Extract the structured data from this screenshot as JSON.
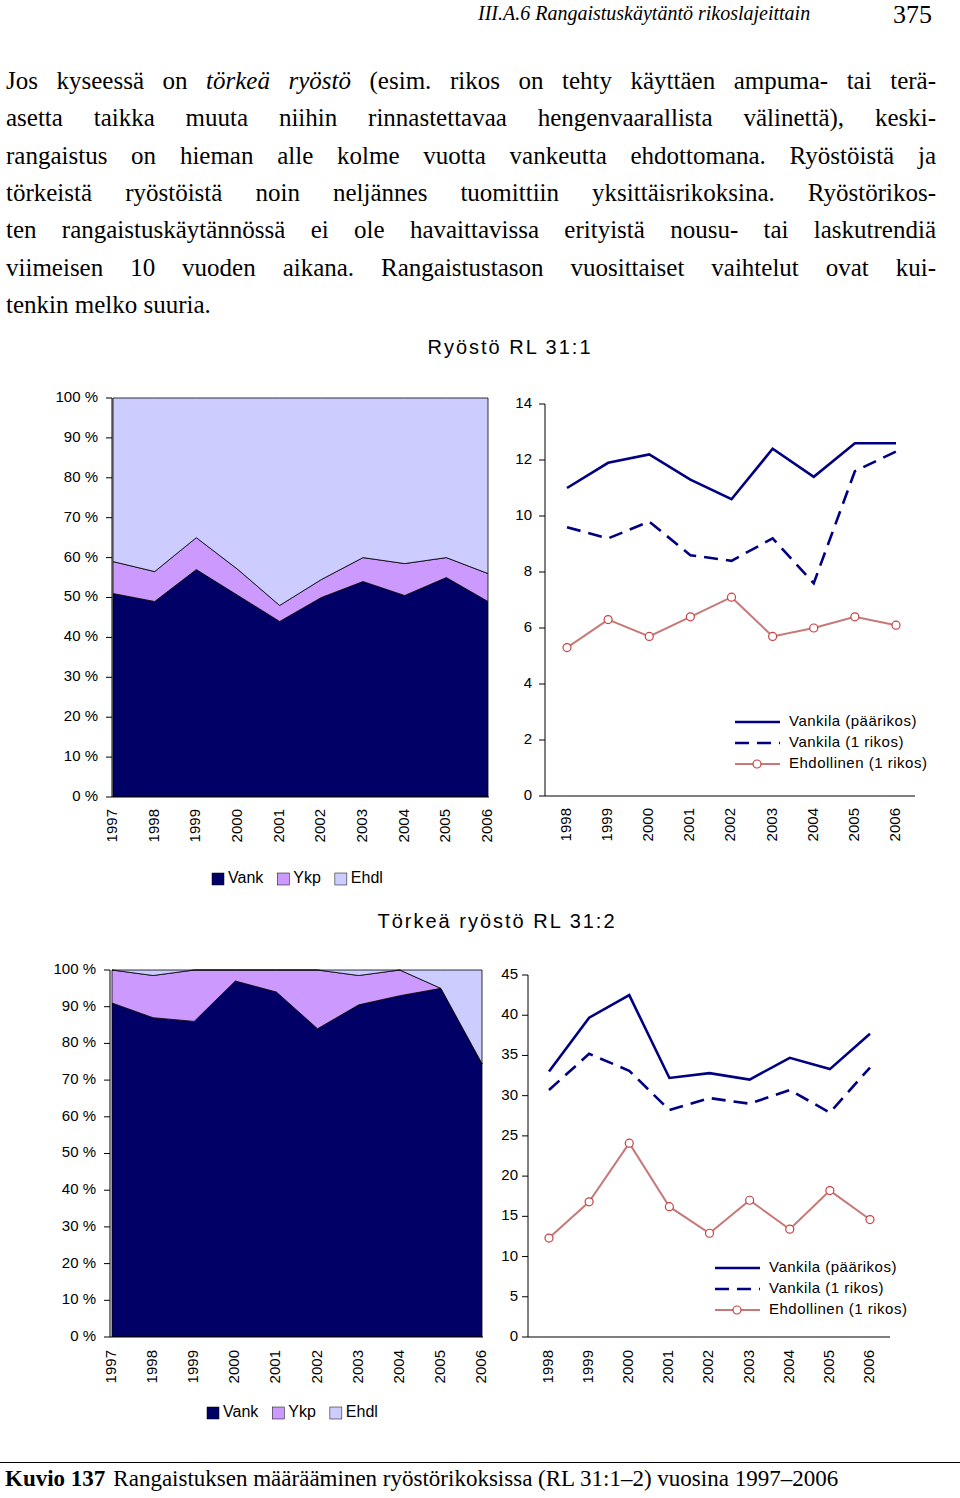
{
  "header": {
    "section": "III.A.6 Rangaistuskäytäntö rikoslajeittain",
    "page": "375"
  },
  "paragraph": [
    {
      "segments": [
        {
          "text": "Jos kyseessä on "
        },
        {
          "text": "törkeä ryöstö",
          "style": "italic"
        },
        {
          "text": " (esim. rikos on tehty käyttäen ampuma- tai terä-"
        }
      ]
    },
    {
      "segments": [
        {
          "text": "asetta taikka muuta niihin rinnastettavaa hengenvaarallista välinettä), keski-"
        }
      ]
    },
    {
      "segments": [
        {
          "text": "rangaistus on hieman alle kolme vuotta vankeutta ehdottomana. Ryöstöistä ja"
        }
      ]
    },
    {
      "segments": [
        {
          "text": "törkeistä ryöstöistä noin neljännes tuomittiin yksittäisrikoksina. Ryöstörikos-"
        }
      ]
    },
    {
      "segments": [
        {
          "text": "ten rangaistuskäytännössä ei ole havaittavissa erityistä nousu- tai laskutrendiä"
        }
      ]
    },
    {
      "segments": [
        {
          "text": "viimeisen 10 vuoden aikana. Rangaistustason vuosittaiset vaihtelut ovat kui-"
        }
      ]
    },
    {
      "segments": [
        {
          "text": "tenkin melko suuria."
        }
      ]
    }
  ],
  "chart_data": [
    {
      "type": "area",
      "stacked": true,
      "title": "Ryöstö RL 31:1",
      "categories": [
        "1997",
        "1998",
        "1999",
        "2000",
        "2001",
        "2002",
        "2003",
        "2004",
        "2005",
        "2006"
      ],
      "series": [
        {
          "name": "Vank",
          "color": "#000066",
          "values": [
            51,
            49,
            57,
            50.5,
            44,
            50,
            54,
            50.5,
            55,
            49
          ]
        },
        {
          "name": "Ykp",
          "color": "#cc99ff",
          "values": [
            8,
            7.5,
            8,
            6.5,
            4,
            4.5,
            6,
            8,
            5,
            7
          ]
        },
        {
          "name": "Ehdl",
          "color": "#ccccff",
          "values": [
            41,
            43.5,
            35,
            43,
            52,
            45.5,
            40,
            41.5,
            40,
            44
          ]
        }
      ],
      "ylim": [
        0,
        100
      ],
      "yticks": [
        {
          "value": 0,
          "label": "0 %"
        },
        {
          "value": 10,
          "label": "10 %"
        },
        {
          "value": 20,
          "label": "20 %"
        },
        {
          "value": 30,
          "label": "30 %"
        },
        {
          "value": 40,
          "label": "40 %"
        },
        {
          "value": 50,
          "label": "50 %"
        },
        {
          "value": 60,
          "label": "60 %"
        },
        {
          "value": 70,
          "label": "70 %"
        },
        {
          "value": 80,
          "label": "80 %"
        },
        {
          "value": 90,
          "label": "90 %"
        },
        {
          "value": 100,
          "label": "100 %"
        }
      ],
      "legend": "bottom",
      "grid": false
    },
    {
      "type": "line",
      "categories": [
        "1998",
        "1999",
        "2000",
        "2001",
        "2002",
        "2003",
        "2004",
        "2005",
        "2006"
      ],
      "series": [
        {
          "name": "Vankila (päärikos)",
          "color": "#000080",
          "line_style": "solid",
          "values": [
            11.0,
            11.9,
            12.2,
            11.3,
            10.6,
            12.4,
            11.4,
            12.6,
            12.6
          ]
        },
        {
          "name": "Vankila (1 rikos)",
          "color": "#000080",
          "line_style": "dashed",
          "values": [
            9.6,
            9.2,
            9.8,
            8.6,
            8.4,
            9.2,
            7.6,
            11.6,
            12.3
          ]
        },
        {
          "name": "Ehdollinen (1 rikos)",
          "color": "#c87878",
          "line_style": "solid",
          "marker": "circle",
          "values": [
            5.3,
            6.3,
            5.7,
            6.4,
            7.1,
            5.7,
            6.0,
            6.4,
            6.1
          ]
        }
      ],
      "ylim": [
        0,
        14
      ],
      "yticks": [
        0,
        2,
        4,
        6,
        8,
        10,
        12,
        14
      ],
      "legend": "lower right",
      "grid": false
    },
    {
      "type": "area",
      "stacked": true,
      "title": "Törkeä ryöstö RL 31:2",
      "categories": [
        "1997",
        "1998",
        "1999",
        "2000",
        "2001",
        "2002",
        "2003",
        "2004",
        "2005",
        "2006"
      ],
      "series": [
        {
          "name": "Vank",
          "color": "#000066",
          "values": [
            91,
            87,
            86,
            97,
            94,
            84,
            90.5,
            93,
            95,
            74.5
          ]
        },
        {
          "name": "Ykp",
          "color": "#cc99ff",
          "values": [
            9,
            11.5,
            14,
            3,
            6,
            16,
            8,
            7,
            0,
            0
          ]
        },
        {
          "name": "Ehdl",
          "color": "#ccccff",
          "values": [
            0,
            1.5,
            0,
            0,
            0,
            0,
            1.5,
            0,
            5,
            25.5
          ]
        }
      ],
      "ylim": [
        0,
        100
      ],
      "yticks": [
        {
          "value": 0,
          "label": "0 %"
        },
        {
          "value": 10,
          "label": "10 %"
        },
        {
          "value": 20,
          "label": "20 %"
        },
        {
          "value": 30,
          "label": "30 %"
        },
        {
          "value": 40,
          "label": "40 %"
        },
        {
          "value": 50,
          "label": "50 %"
        },
        {
          "value": 60,
          "label": "60 %"
        },
        {
          "value": 70,
          "label": "70 %"
        },
        {
          "value": 80,
          "label": "80 %"
        },
        {
          "value": 90,
          "label": "90 %"
        },
        {
          "value": 100,
          "label": "100 %"
        }
      ],
      "legend": "bottom",
      "grid": false
    },
    {
      "type": "line",
      "categories": [
        "1998",
        "1999",
        "2000",
        "2001",
        "2002",
        "2003",
        "2004",
        "2005",
        "2006"
      ],
      "series": [
        {
          "name": "Vankila (päärikos)",
          "color": "#000080",
          "line_style": "solid",
          "values": [
            33.0,
            39.7,
            42.5,
            32.2,
            32.8,
            32.0,
            34.7,
            33.3,
            37.7
          ]
        },
        {
          "name": "Vankila (1 rikos)",
          "color": "#000080",
          "line_style": "dashed",
          "values": [
            30.7,
            35.2,
            33.1,
            28.2,
            29.7,
            29.0,
            30.7,
            27.9,
            33.5
          ]
        },
        {
          "name": "Ehdollinen (1 rikos)",
          "color": "#c87878",
          "line_style": "solid",
          "marker": "circle",
          "values": [
            12.3,
            16.8,
            24.1,
            16.2,
            12.9,
            17.0,
            13.4,
            18.2,
            14.6
          ]
        }
      ],
      "ylim": [
        0,
        45
      ],
      "yticks": [
        0,
        5,
        10,
        15,
        20,
        25,
        30,
        35,
        40,
        45
      ],
      "legend": "lower right",
      "grid": false
    }
  ],
  "caption": {
    "label": "Kuvio 137",
    "text": "Rangaistuksen määrääminen ryöstörikoksissa (RL 31:1–2) vuosina 1997–2006"
  }
}
